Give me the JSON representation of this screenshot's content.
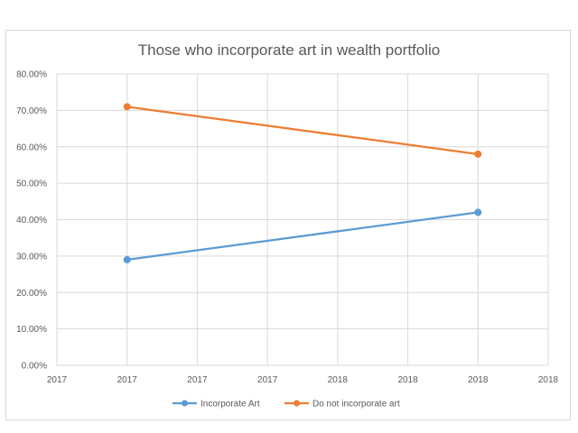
{
  "chart_data": {
    "type": "line",
    "title": "Those who incorporate art in wealth portfolio",
    "xlabel": "",
    "ylabel": "",
    "ylim": [
      0,
      0.8
    ],
    "y_ticks": [
      "0.00%",
      "10.00%",
      "20.00%",
      "30.00%",
      "40.00%",
      "50.00%",
      "60.00%",
      "70.00%",
      "80.00%"
    ],
    "x_ticks": [
      "2017",
      "2017",
      "2017",
      "2017",
      "2018",
      "2018",
      "2018",
      "2018"
    ],
    "x_range": [
      0,
      7
    ],
    "grid": true,
    "legend_position": "bottom",
    "series": [
      {
        "name": "Incorporate Art",
        "color": "#5b9bd5",
        "x": [
          1,
          6
        ],
        "values": [
          0.29,
          0.42
        ]
      },
      {
        "name": "Do not incorporate art",
        "color": "#ed7d31",
        "x": [
          1,
          6
        ],
        "values": [
          0.71,
          0.58
        ]
      }
    ]
  }
}
